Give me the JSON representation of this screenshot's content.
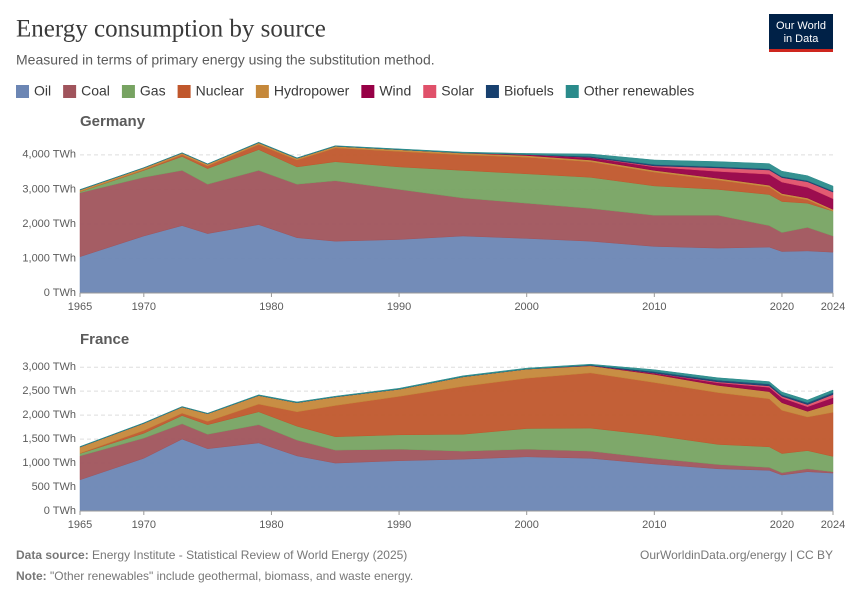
{
  "header": {
    "title": "Energy consumption by source",
    "subtitle": "Measured in terms of primary energy using the substitution method.",
    "logo": [
      "Our World",
      "in Data"
    ]
  },
  "footer": {
    "source_label": "Data source:",
    "source": "Energy Institute - Statistical Review of World Energy (2025)",
    "credit": "OurWorldinData.org/energy | CC BY",
    "note_label": "Note:",
    "note": "\"Other renewables\" include geothermal, biomass, and waste energy."
  },
  "chart_data": [
    {
      "type": "area",
      "stacked": true,
      "title": "Germany",
      "x": [
        1965,
        1970,
        1973,
        1975,
        1979,
        1982,
        1985,
        1990,
        1995,
        2000,
        2005,
        2010,
        2015,
        2019,
        2020,
        2022,
        2024
      ],
      "xlim": [
        1965,
        2024
      ],
      "xticks": [
        1965,
        1970,
        1980,
        1990,
        2000,
        2010,
        2020,
        2024
      ],
      "ylim": [
        0,
        4400
      ],
      "yticks": [
        {
          "value": 0,
          "label": "0 TWh"
        },
        {
          "value": 1000,
          "label": "1,000 TWh"
        },
        {
          "value": 2000,
          "label": "2,000 TWh"
        },
        {
          "value": 3000,
          "label": "3,000 TWh"
        },
        {
          "value": 4000,
          "label": "4,000 TWh"
        }
      ],
      "grid": true,
      "series": [
        {
          "name": "Oil",
          "color": "#6c86b4",
          "values": [
            1050,
            1650,
            1950,
            1720,
            1980,
            1600,
            1500,
            1550,
            1650,
            1580,
            1500,
            1350,
            1300,
            1330,
            1200,
            1220,
            1180
          ]
        },
        {
          "name": "Coal",
          "color": "#a0545c",
          "values": [
            1850,
            1700,
            1600,
            1430,
            1570,
            1550,
            1750,
            1450,
            1100,
            1020,
            950,
            900,
            950,
            620,
            550,
            680,
            470
          ]
        },
        {
          "name": "Gas",
          "color": "#77a362",
          "values": [
            30,
            200,
            400,
            450,
            600,
            500,
            550,
            650,
            800,
            850,
            900,
            850,
            750,
            900,
            900,
            700,
            720
          ]
        },
        {
          "name": "Nuclear",
          "color": "#c0572c",
          "values": [
            5,
            20,
            50,
            80,
            150,
            200,
            400,
            450,
            450,
            480,
            450,
            400,
            270,
            220,
            180,
            100,
            0
          ]
        },
        {
          "name": "Hydropower",
          "color": "#c5883a",
          "values": [
            50,
            50,
            50,
            50,
            50,
            50,
            50,
            50,
            50,
            50,
            50,
            50,
            50,
            50,
            50,
            50,
            50
          ]
        },
        {
          "name": "Wind",
          "color": "#970046",
          "values": [
            0,
            0,
            0,
            0,
            0,
            0,
            0,
            0,
            5,
            25,
            70,
            100,
            200,
            320,
            330,
            310,
            310
          ]
        },
        {
          "name": "Solar",
          "color": "#e0516a",
          "values": [
            0,
            0,
            0,
            0,
            0,
            0,
            0,
            0,
            0,
            0,
            3,
            30,
            100,
            120,
            130,
            160,
            190
          ]
        },
        {
          "name": "Biofuels",
          "color": "#18406f",
          "values": [
            0,
            0,
            0,
            0,
            0,
            0,
            0,
            0,
            0,
            5,
            30,
            40,
            35,
            35,
            35,
            35,
            35
          ]
        },
        {
          "name": "Other renewables",
          "color": "#2a8b8b",
          "values": [
            10,
            10,
            10,
            10,
            15,
            15,
            15,
            20,
            25,
            30,
            70,
            130,
            150,
            150,
            150,
            140,
            140
          ]
        }
      ]
    },
    {
      "type": "area",
      "stacked": true,
      "title": "France",
      "x": [
        1965,
        1970,
        1973,
        1975,
        1979,
        1982,
        1985,
        1990,
        1995,
        2000,
        2005,
        2010,
        2015,
        2019,
        2020,
        2022,
        2024
      ],
      "xlim": [
        1965,
        2024
      ],
      "xticks": [
        1965,
        1970,
        1980,
        1990,
        2000,
        2010,
        2020,
        2024
      ],
      "ylim": [
        0,
        3150
      ],
      "yticks": [
        {
          "value": 0,
          "label": "0 TWh"
        },
        {
          "value": 500,
          "label": "500 TWh"
        },
        {
          "value": 1000,
          "label": "1,000 TWh"
        },
        {
          "value": 1500,
          "label": "1,500 TWh"
        },
        {
          "value": 2000,
          "label": "2,000 TWh"
        },
        {
          "value": 2500,
          "label": "2,500 TWh"
        },
        {
          "value": 3000,
          "label": "3,000 TWh"
        }
      ],
      "grid": true,
      "series": [
        {
          "name": "Oil",
          "color": "#6c86b4",
          "values": [
            650,
            1100,
            1500,
            1300,
            1420,
            1150,
            1000,
            1050,
            1080,
            1130,
            1100,
            980,
            880,
            850,
            750,
            820,
            790
          ]
        },
        {
          "name": "Coal",
          "color": "#a0545c",
          "values": [
            500,
            420,
            320,
            300,
            380,
            330,
            270,
            240,
            170,
            160,
            150,
            120,
            90,
            60,
            50,
            60,
            30
          ]
        },
        {
          "name": "Gas",
          "color": "#77a362",
          "values": [
            50,
            100,
            170,
            200,
            270,
            290,
            280,
            300,
            350,
            430,
            480,
            480,
            420,
            430,
            400,
            380,
            320
          ]
        },
        {
          "name": "Nuclear",
          "color": "#c0572c",
          "values": [
            5,
            60,
            50,
            70,
            160,
            300,
            650,
            800,
            1000,
            1050,
            1150,
            1100,
            1080,
            1000,
            900,
            700,
            920
          ]
        },
        {
          "name": "Hydropower",
          "color": "#c5883a",
          "values": [
            130,
            150,
            130,
            160,
            180,
            190,
            180,
            150,
            200,
            190,
            150,
            170,
            150,
            150,
            160,
            120,
            180
          ]
        },
        {
          "name": "Wind",
          "color": "#970046",
          "values": [
            0,
            0,
            0,
            0,
            0,
            0,
            0,
            0,
            0,
            0,
            3,
            25,
            55,
            90,
            100,
            95,
            125
          ]
        },
        {
          "name": "Solar",
          "color": "#e0516a",
          "values": [
            0,
            0,
            0,
            0,
            0,
            0,
            0,
            0,
            0,
            0,
            0,
            2,
            18,
            30,
            32,
            45,
            65
          ]
        },
        {
          "name": "Biofuels",
          "color": "#18406f",
          "values": [
            0,
            0,
            0,
            0,
            0,
            0,
            0,
            0,
            0,
            0,
            10,
            30,
            35,
            40,
            35,
            40,
            40
          ]
        },
        {
          "name": "Other renewables",
          "color": "#2a8b8b",
          "values": [
            10,
            10,
            10,
            10,
            15,
            15,
            15,
            20,
            20,
            20,
            20,
            40,
            50,
            50,
            55,
            55,
            55
          ]
        }
      ]
    }
  ]
}
